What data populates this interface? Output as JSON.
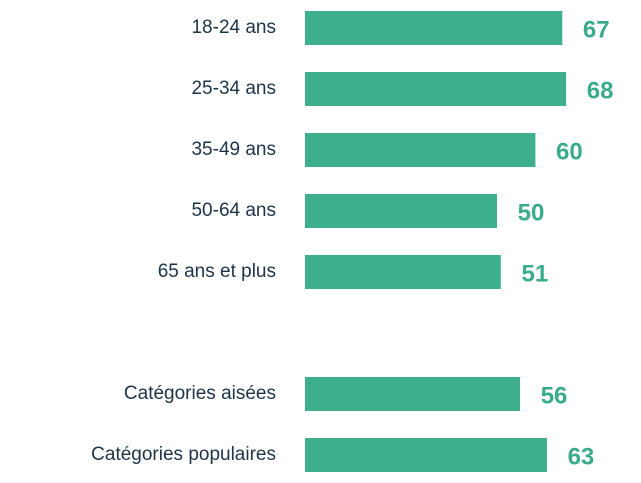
{
  "chart_data": {
    "type": "hbar",
    "categories": [
      "18-24 ans",
      "25-34 ans",
      "35-49 ans",
      "50-64 ans",
      "65 ans et plus",
      null,
      "Catégories aisées",
      "Catégories populaires"
    ],
    "values": [
      67,
      68,
      60,
      50,
      51,
      null,
      56,
      63
    ],
    "color": "#3daf8f",
    "label_color": "#3aab8c"
  }
}
